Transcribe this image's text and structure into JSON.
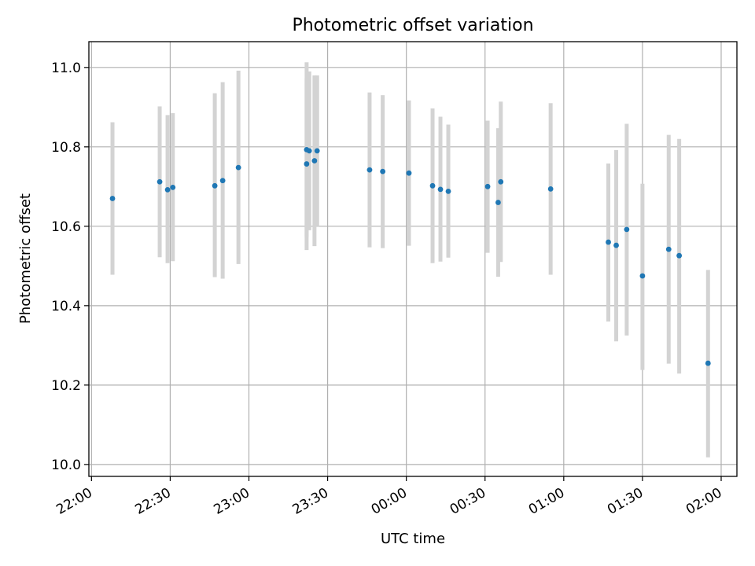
{
  "chart_data": {
    "type": "scatter",
    "title": "Photometric offset variation",
    "xlabel": "UTC time",
    "ylabel": "Photometric offset",
    "ylim": [
      9.97,
      11.065
    ],
    "xlim": [
      "21:59",
      "02:06"
    ],
    "grid": true,
    "x_day_wrap": "00:00",
    "y_ticks": [
      "10.0",
      "10.2",
      "10.4",
      "10.6",
      "10.8",
      "11.0"
    ],
    "x_ticks": [
      "22:00",
      "22:30",
      "23:00",
      "23:30",
      "00:00",
      "00:30",
      "01:00",
      "01:30",
      "02:00"
    ],
    "marker_color": "#1f77b4",
    "errorbar_color": "#d3d3d3",
    "series": [
      {
        "points": [
          {
            "t": "22:08",
            "y": 10.67,
            "lo": 10.478,
            "hi": 10.862
          },
          {
            "t": "22:26",
            "y": 10.712,
            "lo": 10.522,
            "hi": 10.902
          },
          {
            "t": "22:29",
            "y": 10.692,
            "lo": 10.507,
            "hi": 10.88
          },
          {
            "t": "22:31",
            "y": 10.698,
            "lo": 10.512,
            "hi": 10.885
          },
          {
            "t": "22:47",
            "y": 10.702,
            "lo": 10.472,
            "hi": 10.935
          },
          {
            "t": "22:50",
            "y": 10.715,
            "lo": 10.468,
            "hi": 10.963
          },
          {
            "t": "22:56",
            "y": 10.748,
            "lo": 10.505,
            "hi": 10.992
          },
          {
            "t": "23:22",
            "y": 10.793,
            "lo": 10.573,
            "hi": 11.013
          },
          {
            "t": "23:22",
            "y": 10.757,
            "lo": 10.54,
            "hi": 10.973
          },
          {
            "t": "23:23",
            "y": 10.79,
            "lo": 10.59,
            "hi": 10.99
          },
          {
            "t": "23:25",
            "y": 10.765,
            "lo": 10.55,
            "hi": 10.98
          },
          {
            "t": "23:26",
            "y": 10.79,
            "lo": 10.6,
            "hi": 10.98
          },
          {
            "t": "23:46",
            "y": 10.742,
            "lo": 10.547,
            "hi": 10.937
          },
          {
            "t": "23:51",
            "y": 10.738,
            "lo": 10.545,
            "hi": 10.93
          },
          {
            "t": "00:01",
            "y": 10.734,
            "lo": 10.551,
            "hi": 10.917
          },
          {
            "t": "00:10",
            "y": 10.702,
            "lo": 10.507,
            "hi": 10.897
          },
          {
            "t": "00:13",
            "y": 10.693,
            "lo": 10.511,
            "hi": 10.876
          },
          {
            "t": "00:16",
            "y": 10.688,
            "lo": 10.521,
            "hi": 10.856
          },
          {
            "t": "00:31",
            "y": 10.7,
            "lo": 10.533,
            "hi": 10.866
          },
          {
            "t": "00:35",
            "y": 10.66,
            "lo": 10.473,
            "hi": 10.847
          },
          {
            "t": "00:36",
            "y": 10.712,
            "lo": 10.51,
            "hi": 10.914
          },
          {
            "t": "00:55",
            "y": 10.694,
            "lo": 10.478,
            "hi": 10.91
          },
          {
            "t": "01:17",
            "y": 10.56,
            "lo": 10.36,
            "hi": 10.758
          },
          {
            "t": "01:20",
            "y": 10.552,
            "lo": 10.31,
            "hi": 10.792
          },
          {
            "t": "01:24",
            "y": 10.592,
            "lo": 10.325,
            "hi": 10.858
          },
          {
            "t": "01:30",
            "y": 10.475,
            "lo": 10.238,
            "hi": 10.707
          },
          {
            "t": "01:40",
            "y": 10.542,
            "lo": 10.254,
            "hi": 10.83
          },
          {
            "t": "01:44",
            "y": 10.526,
            "lo": 10.229,
            "hi": 10.82
          },
          {
            "t": "01:55",
            "y": 10.255,
            "lo": 10.018,
            "hi": 10.49
          }
        ]
      }
    ]
  }
}
